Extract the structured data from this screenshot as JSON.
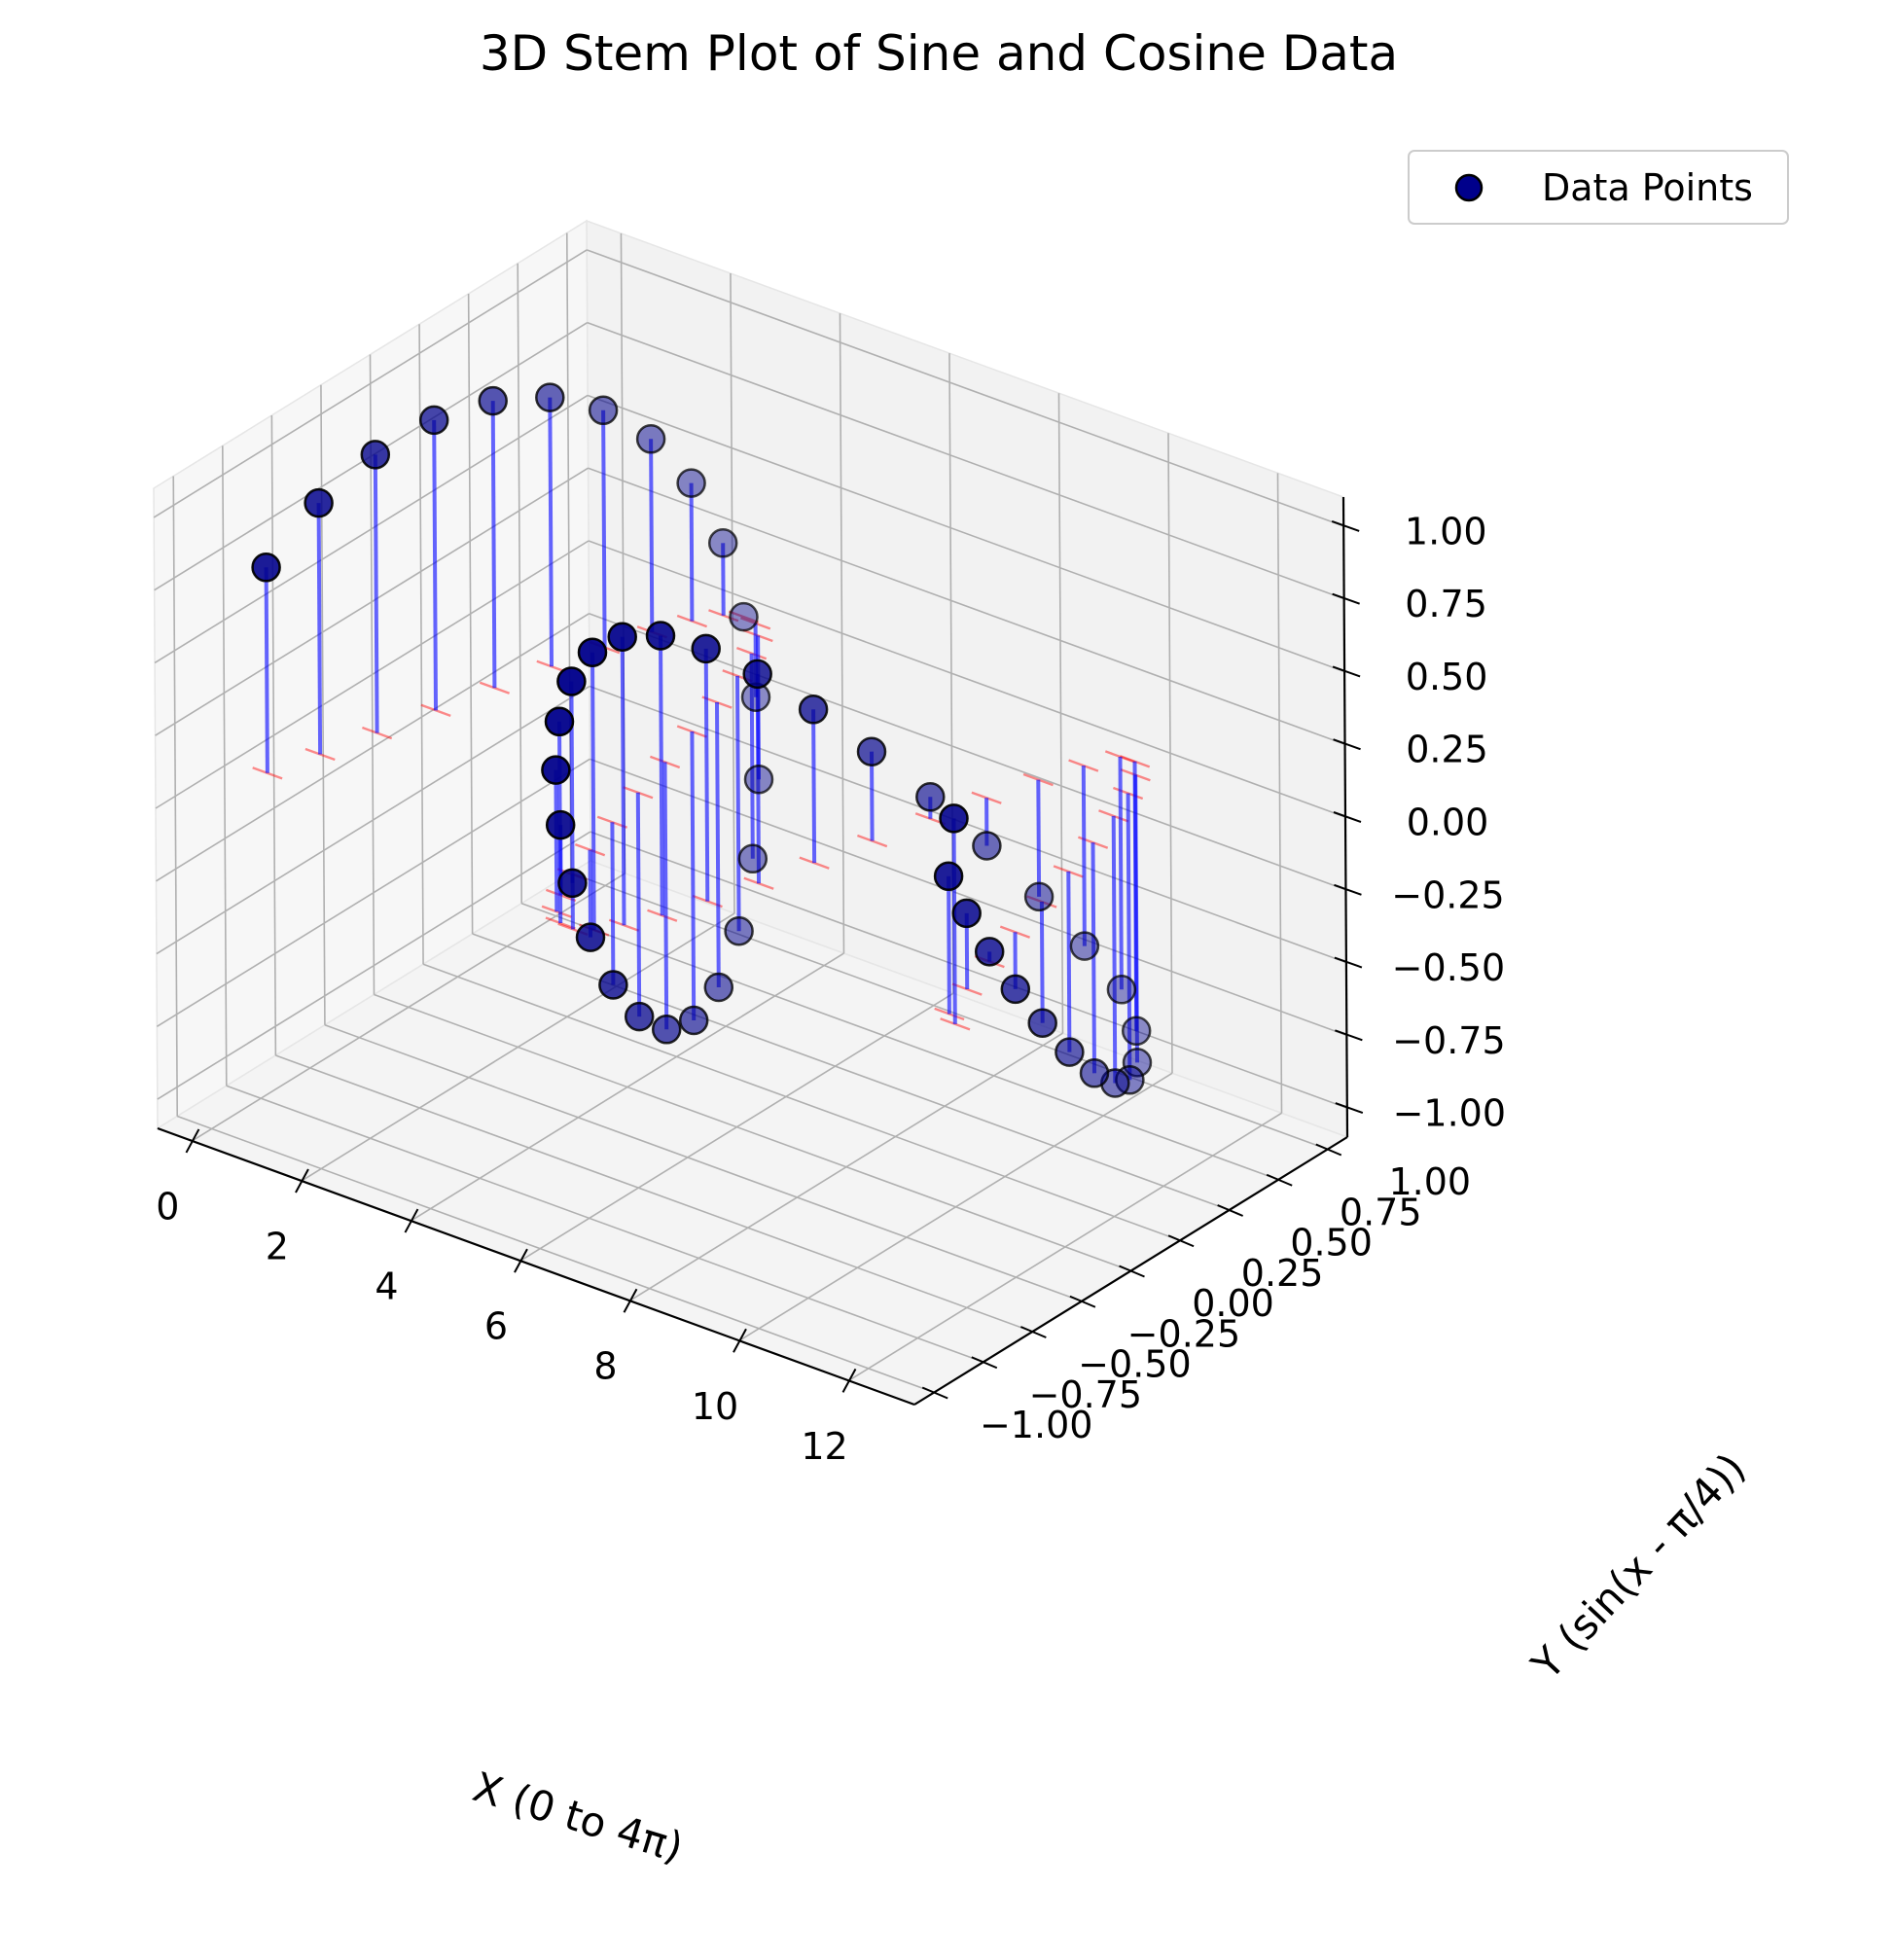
{
  "chart_data": {
    "type": "scatter",
    "projection": "3d",
    "title": "3D Stem Plot of Sine and Cosine Data",
    "xlabel": "X (0 to 4π)",
    "ylabel": "Y (sin(x - π/4))",
    "zlabel": "",
    "xlim": [
      -0.63,
      13.2
    ],
    "ylim": [
      -1.1,
      1.1
    ],
    "zlim": [
      -1.1,
      1.1
    ],
    "x_ticks": [
      "0",
      "2",
      "4",
      "6",
      "8",
      "10",
      "12"
    ],
    "y_ticks": [
      "−1.00",
      "−0.75",
      "−0.50",
      "−0.25",
      "0.00",
      "0.25",
      "0.50",
      "0.75",
      "1.00"
    ],
    "z_ticks": [
      "−1.00",
      "−0.75",
      "−0.50",
      "−0.25",
      "0.00",
      "0.25",
      "0.50",
      "0.75",
      "1.00"
    ],
    "grid": true,
    "legend": {
      "position": "top-right",
      "entries": [
        "Data Points"
      ]
    },
    "series": [
      {
        "name": "Data Points",
        "marker_color": "#00008b",
        "stem_color": "#0000ff",
        "baseline_color": "#ff0000",
        "x": [
          0.0,
          0.2565,
          0.513,
          0.7695,
          1.026,
          1.2825,
          1.539,
          1.7955,
          2.052,
          2.3085,
          2.565,
          2.8215,
          3.078,
          3.3345,
          3.591,
          3.8475,
          4.104,
          4.3605,
          4.617,
          4.8735,
          5.13,
          5.3865,
          5.643,
          5.8995,
          6.156,
          6.4125,
          6.669,
          6.9255,
          7.182,
          7.4385,
          7.695,
          7.9515,
          8.208,
          8.4645,
          8.721,
          8.9775,
          9.234,
          9.4905,
          9.747,
          10.0035,
          10.26,
          10.5165,
          10.773,
          11.0295,
          11.286,
          11.5425,
          11.799,
          12.0555,
          12.312,
          12.5664
        ],
        "y": [
          -0.7071,
          -0.5104,
          -0.2929,
          -0.0652,
          0.1621,
          0.3804,
          0.579,
          0.7483,
          0.8802,
          0.9684,
          1.0,
          0.9883,
          0.9296,
          0.8258,
          0.6825,
          0.5072,
          0.3096,
          0.1004,
          -0.1082,
          -0.3099,
          -0.4947,
          -0.6554,
          -0.7849,
          -0.8777,
          -0.9295,
          -0.9381,
          -0.9017,
          -0.8209,
          -0.6983,
          -0.5392,
          -0.35,
          -0.1392,
          0.0836,
          0.3079,
          0.522,
          0.7137,
          0.8719,
          0.987,
          0.9902,
          0.922,
          0.813,
          0.668,
          0.4923,
          0.2959,
          0.0894,
          -0.1177,
          -0.3186,
          -0.5041,
          -0.6655,
          -0.7071
        ],
        "z": [
          0.7071,
          0.8638,
          0.957,
          0.998,
          0.9867,
          0.9248,
          0.8155,
          0.6635,
          0.4746,
          0.2491,
          0.0,
          -0.2536,
          -0.4939,
          -0.7058,
          -0.8771,
          -0.9795,
          -0.993,
          -0.9191,
          -0.7701,
          -0.5591,
          -0.301,
          -0.03,
          0.2419,
          0.487,
          0.693,
          0.8521,
          0.9541,
          0.9915,
          0.9619,
          0.8684,
          0.7197,
          0.5276,
          0.3072,
          0.075,
          -0.1645,
          -0.4022,
          -0.6203,
          -0.8001,
          -0.9261,
          -0.9889,
          -0.9857,
          -0.9183,
          -0.793,
          -0.6209,
          -0.4169,
          -0.1963,
          0.0338,
          0.2611,
          0.4736,
          0.7071
        ]
      }
    ]
  }
}
